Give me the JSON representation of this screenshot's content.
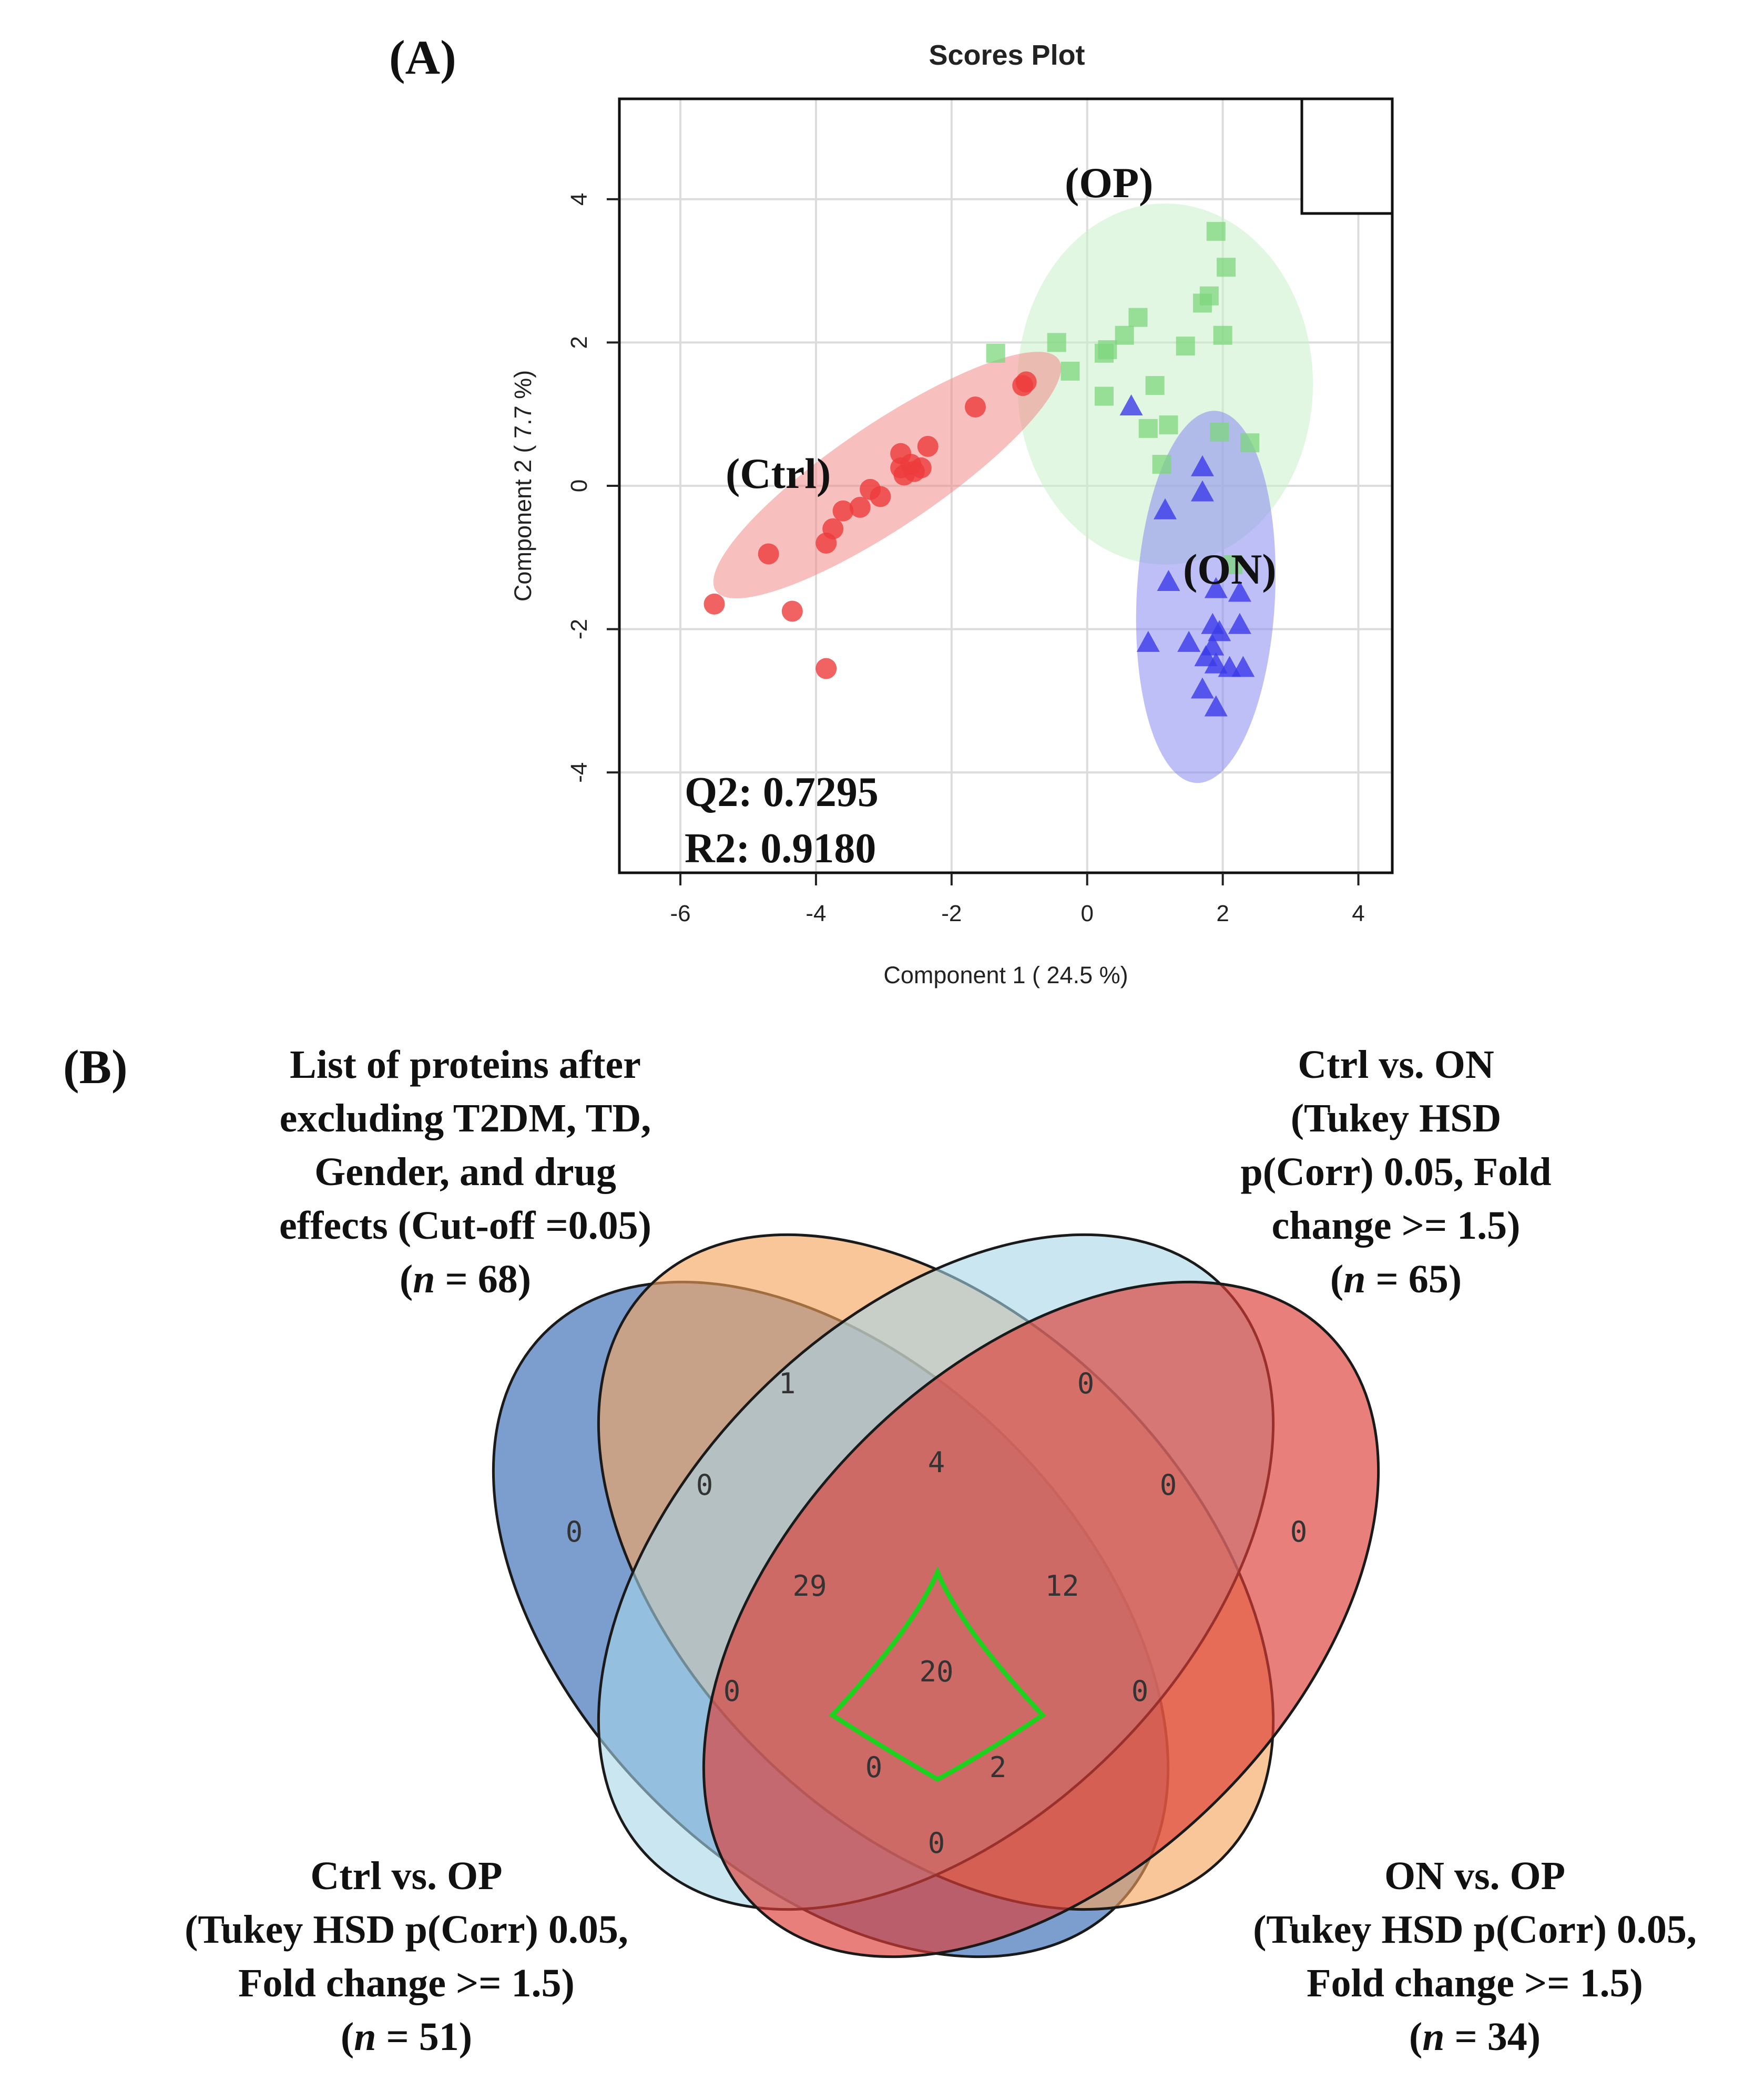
{
  "panel_a": {
    "label": "(A)",
    "chart_data": {
      "type": "scatter",
      "title": "Scores Plot",
      "xlabel": "Component 1 ( 24.5 %)",
      "ylabel": "Component 2 ( 7.7 %)",
      "xlim": [
        -6.9,
        4.5
      ],
      "ylim": [
        -5.4,
        5.4
      ],
      "xticks": [
        "-6",
        "-4",
        "-2",
        "0",
        "2",
        "4"
      ],
      "yticks": [
        "-4",
        "-2",
        "0",
        "2",
        "4"
      ],
      "grid": true,
      "legend": "top-right (empty box)",
      "series": [
        {
          "name": "Ctrl",
          "label": "(Ctrl)",
          "marker": "circle",
          "color": "#ee3b3b",
          "ellipse_color": "#f28b8b",
          "points": [
            [
              -5.5,
              -1.65
            ],
            [
              -4.7,
              -0.95
            ],
            [
              -4.35,
              -1.75
            ],
            [
              -3.85,
              -2.55
            ],
            [
              -3.85,
              -0.8
            ],
            [
              -3.75,
              -0.6
            ],
            [
              -3.6,
              -0.35
            ],
            [
              -3.35,
              -0.3
            ],
            [
              -3.2,
              -0.05
            ],
            [
              -3.05,
              -0.15
            ],
            [
              -2.75,
              0.45
            ],
            [
              -2.75,
              0.25
            ],
            [
              -2.7,
              0.15
            ],
            [
              -2.6,
              0.3
            ],
            [
              -2.55,
              0.2
            ],
            [
              -2.45,
              0.25
            ],
            [
              -2.35,
              0.55
            ],
            [
              -1.65,
              1.1
            ],
            [
              -0.95,
              1.4
            ],
            [
              -0.9,
              1.45
            ]
          ],
          "ellipse": {
            "cx": -2.95,
            "cy": 0.15,
            "rx": 3.05,
            "ry": 0.72,
            "angle_deg": 34
          }
        },
        {
          "name": "OP",
          "label": "(OP)",
          "marker": "square",
          "color": "#7ed67e",
          "ellipse_color": "#c9f0c9",
          "points": [
            [
              -1.35,
              1.85
            ],
            [
              -0.45,
              2.0
            ],
            [
              -0.25,
              1.6
            ],
            [
              0.25,
              1.85
            ],
            [
              0.3,
              1.9
            ],
            [
              0.55,
              2.1
            ],
            [
              0.75,
              2.35
            ],
            [
              0.25,
              1.25
            ],
            [
              1.0,
              1.4
            ],
            [
              0.9,
              0.8
            ],
            [
              1.1,
              0.3
            ],
            [
              1.45,
              1.95
            ],
            [
              1.7,
              2.55
            ],
            [
              1.8,
              2.65
            ],
            [
              1.9,
              3.55
            ],
            [
              2.05,
              3.05
            ],
            [
              2.0,
              2.1
            ],
            [
              1.95,
              0.75
            ],
            [
              2.4,
              0.6
            ],
            [
              1.2,
              0.85
            ],
            [
              2.15,
              -1.1
            ]
          ],
          "ellipse": {
            "cx": 1.15,
            "cy": 1.42,
            "rx": 2.18,
            "ry": 2.52,
            "angle_deg": 0
          }
        },
        {
          "name": "ON",
          "label": "(ON)",
          "marker": "triangle",
          "color": "#3b3bea",
          "ellipse_color": "#8a8af0",
          "points": [
            [
              0.65,
              1.1
            ],
            [
              1.15,
              -0.35
            ],
            [
              1.7,
              0.25
            ],
            [
              1.7,
              -0.1
            ],
            [
              1.2,
              -1.35
            ],
            [
              1.9,
              -1.45
            ],
            [
              2.25,
              -1.5
            ],
            [
              0.9,
              -2.2
            ],
            [
              1.5,
              -2.2
            ],
            [
              1.85,
              -1.95
            ],
            [
              1.95,
              -2.05
            ],
            [
              2.25,
              -1.95
            ],
            [
              1.75,
              -2.4
            ],
            [
              1.9,
              -2.5
            ],
            [
              2.1,
              -2.55
            ],
            [
              2.3,
              -2.55
            ],
            [
              1.7,
              -2.85
            ],
            [
              1.9,
              -3.1
            ],
            [
              1.85,
              -2.25
            ]
          ],
          "ellipse": {
            "cx": 1.75,
            "cy": -1.55,
            "rx": 1.02,
            "ry": 2.6,
            "angle_deg": -3
          }
        }
      ],
      "annotations": [
        "Q2: 0.7295",
        "R2: 0.9180"
      ]
    }
  },
  "panel_b": {
    "label": "(B)",
    "chart_data": {
      "type": "venn",
      "sets": [
        {
          "name": "Ctrl vs. OP",
          "color": "#4a78bd",
          "lines": [
            "Ctrl vs. OP",
            "(Tukey HSD p(Corr) 0.05,",
            "Fold change >= 1.5)"
          ],
          "n_prefix": "(",
          "n_symbol": "n",
          "n_suffix": " = 51)"
        },
        {
          "name": "List of proteins after excluding T2DM, TD, Gender, and drug effects",
          "color": "#f5a35c",
          "lines": [
            "List of proteins after",
            "excluding T2DM, TD,",
            "Gender, and drug",
            "effects (Cut-off =0.05)"
          ],
          "n_prefix": "(",
          "n_symbol": "n",
          "n_suffix": " = 68)"
        },
        {
          "name": "Ctrl vs. ON",
          "color": "#a6d5e8",
          "lines": [
            "Ctrl vs. ON",
            "(Tukey HSD",
            "p(Corr) 0.05, Fold",
            "change >= 1.5)"
          ],
          "n_prefix": "(",
          "n_symbol": "n",
          "n_suffix": " = 65)"
        },
        {
          "name": "ON vs. OP",
          "color": "#dc3d36",
          "lines": [
            "ON vs. OP",
            "(Tukey HSD p(Corr) 0.05,",
            "Fold change >= 1.5)"
          ],
          "n_prefix": "(",
          "n_symbol": "n",
          "n_suffix": " = 34)"
        }
      ],
      "regions": [
        {
          "sets": [
            "Ctrl vs. OP"
          ],
          "value": "0"
        },
        {
          "sets": [
            "List"
          ],
          "value": "1"
        },
        {
          "sets": [
            "Ctrl vs. ON"
          ],
          "value": "0"
        },
        {
          "sets": [
            "ON vs. OP"
          ],
          "value": "0"
        },
        {
          "sets": [
            "List",
            "Ctrl vs. ON"
          ],
          "value": "4"
        },
        {
          "sets": [
            "Ctrl vs. OP",
            "List"
          ],
          "value": "0"
        },
        {
          "sets": [
            "Ctrl vs. ON",
            "ON vs. OP"
          ],
          "value": "0"
        },
        {
          "sets": [
            "Ctrl vs. OP",
            "List",
            "Ctrl vs. ON"
          ],
          "value": "29"
        },
        {
          "sets": [
            "List",
            "Ctrl vs. ON",
            "ON vs. OP"
          ],
          "value": "12"
        },
        {
          "sets": [
            "Ctrl vs. OP",
            "List",
            "Ctrl vs. ON",
            "ON vs. OP"
          ],
          "value": "20",
          "highlight": "#1fd01f"
        },
        {
          "sets": [
            "Ctrl vs. OP",
            "Ctrl vs. ON"
          ],
          "value": "0"
        },
        {
          "sets": [
            "List",
            "ON vs. OP"
          ],
          "value": "0"
        },
        {
          "sets": [
            "Ctrl vs. OP",
            "Ctrl vs. ON",
            "ON vs. OP"
          ],
          "value": "0"
        },
        {
          "sets": [
            "Ctrl vs. OP",
            "List",
            "ON vs. OP"
          ],
          "value": "2"
        },
        {
          "sets": [
            "Ctrl vs. OP",
            "ON vs. OP"
          ],
          "value": "0"
        }
      ]
    }
  }
}
